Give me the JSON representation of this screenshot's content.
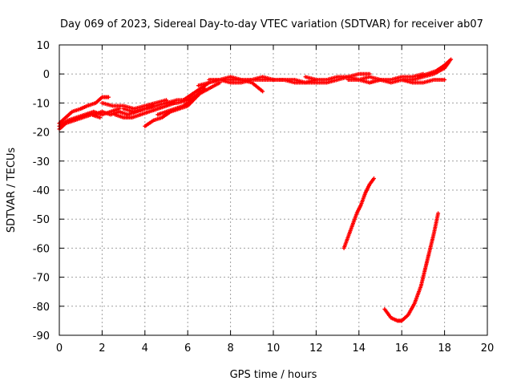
{
  "chart_data": {
    "type": "scatter",
    "title": "Day 069 of 2023, Sidereal Day-to-day VTEC variation (SDTVAR) for receiver ab07",
    "xlabel": "GPS time / hours",
    "ylabel": "SDTVAR / TECUs",
    "xlim": [
      0,
      20
    ],
    "ylim": [
      -90,
      10
    ],
    "x_ticks": [
      "0",
      "2",
      "4",
      "6",
      "8",
      "10",
      "12",
      "14",
      "16",
      "18",
      "20"
    ],
    "y_ticks": [
      "10",
      "0",
      "-10",
      "-20",
      "-30",
      "-40",
      "-50",
      "-60",
      "-70",
      "-80",
      "-90"
    ],
    "grid": true,
    "marker_color": "#ff0000",
    "series": [
      {
        "x": [
          0.0,
          0.3,
          0.6,
          1.0,
          1.3,
          1.7,
          2.0,
          2.3
        ],
        "y": [
          -17,
          -15,
          -13,
          -12,
          -11,
          -10,
          -8,
          -8
        ]
      },
      {
        "x": [
          0.0,
          0.4,
          0.8,
          1.2,
          1.6,
          2.0,
          2.4,
          2.8
        ],
        "y": [
          -18,
          -16,
          -15,
          -14,
          -13,
          -14,
          -13,
          -12
        ]
      },
      {
        "x": [
          0.0,
          0.3,
          0.7,
          1.1,
          1.5,
          1.9
        ],
        "y": [
          -19,
          -17,
          -16,
          -15,
          -14,
          -15
        ]
      },
      {
        "x": [
          1.6,
          2.0,
          2.4,
          2.8,
          3.2,
          3.6,
          4.0,
          4.4
        ],
        "y": [
          -14,
          -13,
          -14,
          -13,
          -14,
          -13,
          -12,
          -11
        ]
      },
      {
        "x": [
          2.0,
          2.5,
          3.0,
          3.5,
          4.0,
          4.5,
          5.0
        ],
        "y": [
          -10,
          -11,
          -11,
          -12,
          -11,
          -10,
          -9
        ]
      },
      {
        "x": [
          2.6,
          3.0,
          3.4,
          3.8,
          4.2,
          4.6,
          5.0,
          5.4
        ],
        "y": [
          -14,
          -15,
          -15,
          -14,
          -13,
          -12,
          -11,
          -10
        ]
      },
      {
        "x": [
          3.0,
          3.5,
          4.0,
          4.5,
          5.0,
          5.5,
          6.0
        ],
        "y": [
          -12,
          -13,
          -12,
          -11,
          -10,
          -9,
          -9
        ]
      },
      {
        "x": [
          4.0,
          4.4,
          4.8,
          5.2,
          5.6,
          6.0,
          6.4,
          6.8
        ],
        "y": [
          -18,
          -16,
          -15,
          -13,
          -12,
          -11,
          -8,
          -5
        ]
      },
      {
        "x": [
          4.6,
          5.0,
          5.4,
          5.8,
          6.2,
          6.6
        ],
        "y": [
          -14,
          -13,
          -12,
          -11,
          -9,
          -6
        ]
      },
      {
        "x": [
          5.0,
          5.5,
          6.0,
          6.5,
          7.0,
          7.5
        ],
        "y": [
          -10,
          -10,
          -9,
          -7,
          -5,
          -3
        ]
      },
      {
        "x": [
          5.8,
          6.2,
          6.6,
          7.0,
          7.5,
          8.0,
          8.5,
          9.0,
          9.5
        ],
        "y": [
          -9,
          -7,
          -5,
          -3,
          -2,
          -2,
          -2,
          -3,
          -6
        ]
      },
      {
        "x": [
          6.5,
          7.0,
          7.5,
          8.0,
          8.5,
          9.0,
          9.5,
          10.0
        ],
        "y": [
          -4,
          -3,
          -2,
          -1,
          -2,
          -2,
          -1,
          -2
        ]
      },
      {
        "x": [
          7.0,
          7.5,
          8.0,
          8.5,
          9.0,
          9.5,
          10.0,
          10.5,
          11.0,
          11.5,
          12.0
        ],
        "y": [
          -2,
          -2,
          -3,
          -3,
          -2,
          -2,
          -2,
          -2,
          -3,
          -3,
          -2
        ]
      },
      {
        "x": [
          10.0,
          10.5,
          11.0,
          11.5,
          12.0,
          12.5,
          13.0,
          13.5,
          14.0,
          14.5
        ],
        "y": [
          -2,
          -2,
          -2,
          -3,
          -3,
          -3,
          -2,
          -1,
          0,
          0
        ]
      },
      {
        "x": [
          11.5,
          12.0,
          12.5,
          13.0,
          13.5,
          14.0,
          14.5,
          15.0
        ],
        "y": [
          -1,
          -2,
          -2,
          -1,
          -1,
          -2,
          -3,
          -2
        ]
      },
      {
        "x": [
          13.5,
          14.0,
          14.5,
          15.0,
          15.5,
          16.0,
          16.5,
          17.0
        ],
        "y": [
          -2,
          -2,
          -1,
          -2,
          -2,
          -1,
          -1,
          0
        ]
      },
      {
        "x": [
          14.5,
          15.0,
          15.5,
          16.0,
          16.5,
          17.0,
          17.5,
          18.0
        ],
        "y": [
          -3,
          -2,
          -3,
          -2,
          -3,
          -3,
          -2,
          -2
        ]
      },
      {
        "x": [
          16.0,
          16.5,
          17.0,
          17.5,
          18.0,
          18.2
        ],
        "y": [
          -2,
          -2,
          -1,
          0,
          2,
          4
        ]
      },
      {
        "x": [
          16.8,
          17.2,
          17.6,
          18.0,
          18.3
        ],
        "y": [
          -1,
          0,
          1,
          3,
          5
        ]
      },
      {
        "x": [
          13.3,
          13.6,
          13.9,
          14.1,
          14.3,
          14.5,
          14.7
        ],
        "y": [
          -60,
          -54,
          -48,
          -45,
          -41,
          -38,
          -36
        ]
      },
      {
        "x": [
          15.2,
          15.5,
          15.8,
          16.0,
          16.3,
          16.6,
          16.9,
          17.1,
          17.3,
          17.5,
          17.7
        ],
        "y": [
          -81,
          -84,
          -85,
          -85,
          -83,
          -79,
          -73,
          -67,
          -61,
          -55,
          -48
        ]
      }
    ]
  }
}
